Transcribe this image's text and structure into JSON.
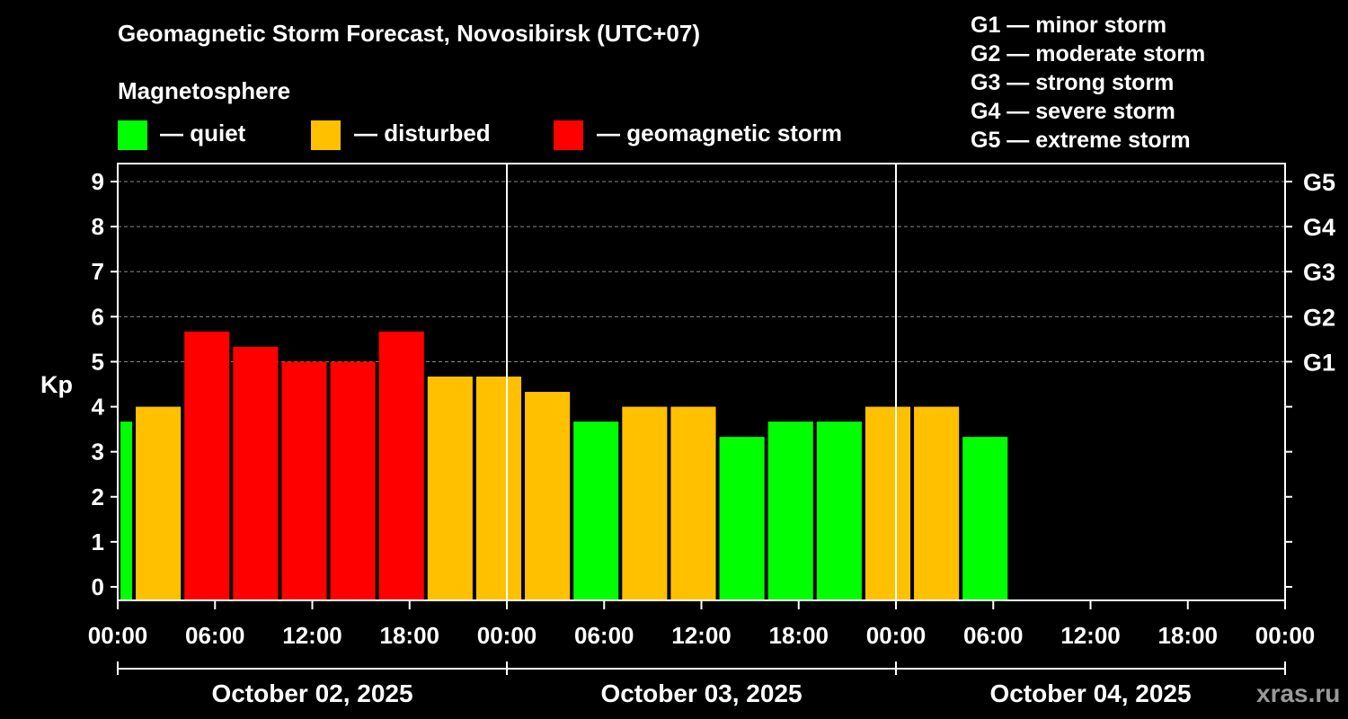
{
  "header": {
    "title": "Geomagnetic Storm Forecast, Novosibirsk (UTC+07)",
    "subtitle": "Magnetosphere"
  },
  "legend": [
    {
      "label": "— quiet",
      "color": "#00ff00"
    },
    {
      "label": "— disturbed",
      "color": "#ffc000"
    },
    {
      "label": "— geomagnetic storm",
      "color": "#ff0000"
    }
  ],
  "storm_scale": [
    "G1 — minor storm",
    "G2 — moderate storm",
    "G3 — strong storm",
    "G4 — severe storm",
    "G5 — extreme storm"
  ],
  "watermark": "xras.ru",
  "chart_data": {
    "type": "bar",
    "ylabel": "Kp",
    "ylim": [
      -0.3,
      9.4
    ],
    "yticks": [
      0,
      1,
      2,
      3,
      4,
      5,
      6,
      7,
      8,
      9
    ],
    "right_axis_labels": [
      {
        "kp": 5,
        "label": "G1"
      },
      {
        "kp": 6,
        "label": "G2"
      },
      {
        "kp": 7,
        "label": "G3"
      },
      {
        "kp": 8,
        "label": "G4"
      },
      {
        "kp": 9,
        "label": "G5"
      }
    ],
    "x_range_hours": [
      0,
      72
    ],
    "x_tick_labels": [
      "00:00",
      "06:00",
      "12:00",
      "18:00",
      "00:00",
      "06:00",
      "12:00",
      "18:00",
      "00:00",
      "06:00",
      "12:00",
      "18:00",
      "00:00"
    ],
    "days": [
      "October 02, 2025",
      "October 03, 2025",
      "October 04, 2025"
    ],
    "colors": {
      "quiet": "#00ff00",
      "disturbed": "#ffc000",
      "storm": "#ff0000"
    },
    "bars": [
      {
        "start_hour": 0,
        "end_hour": 1,
        "kp": 3.67,
        "level": "quiet"
      },
      {
        "start_hour": 1,
        "end_hour": 4,
        "kp": 4.0,
        "level": "disturbed"
      },
      {
        "start_hour": 4,
        "end_hour": 7,
        "kp": 5.67,
        "level": "storm"
      },
      {
        "start_hour": 7,
        "end_hour": 10,
        "kp": 5.33,
        "level": "storm"
      },
      {
        "start_hour": 10,
        "end_hour": 13,
        "kp": 5.0,
        "level": "storm"
      },
      {
        "start_hour": 13,
        "end_hour": 16,
        "kp": 5.0,
        "level": "storm"
      },
      {
        "start_hour": 16,
        "end_hour": 19,
        "kp": 5.67,
        "level": "storm"
      },
      {
        "start_hour": 19,
        "end_hour": 22,
        "kp": 4.67,
        "level": "disturbed"
      },
      {
        "start_hour": 22,
        "end_hour": 25,
        "kp": 4.67,
        "level": "disturbed"
      },
      {
        "start_hour": 25,
        "end_hour": 28,
        "kp": 4.33,
        "level": "disturbed"
      },
      {
        "start_hour": 28,
        "end_hour": 31,
        "kp": 3.67,
        "level": "quiet"
      },
      {
        "start_hour": 31,
        "end_hour": 34,
        "kp": 4.0,
        "level": "disturbed"
      },
      {
        "start_hour": 34,
        "end_hour": 37,
        "kp": 4.0,
        "level": "disturbed"
      },
      {
        "start_hour": 37,
        "end_hour": 40,
        "kp": 3.33,
        "level": "quiet"
      },
      {
        "start_hour": 40,
        "end_hour": 43,
        "kp": 3.67,
        "level": "quiet"
      },
      {
        "start_hour": 43,
        "end_hour": 46,
        "kp": 3.67,
        "level": "quiet"
      },
      {
        "start_hour": 46,
        "end_hour": 49,
        "kp": 4.0,
        "level": "disturbed"
      },
      {
        "start_hour": 49,
        "end_hour": 52,
        "kp": 4.0,
        "level": "disturbed"
      },
      {
        "start_hour": 52,
        "end_hour": 55,
        "kp": 3.33,
        "level": "quiet"
      }
    ]
  }
}
